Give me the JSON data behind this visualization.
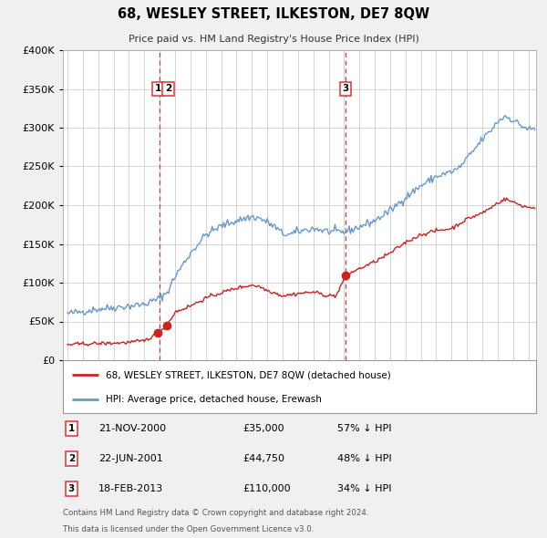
{
  "title": "68, WESLEY STREET, ILKESTON, DE7 8QW",
  "subtitle": "Price paid vs. HM Land Registry's House Price Index (HPI)",
  "legend_line1": "68, WESLEY STREET, ILKESTON, DE7 8QW (detached house)",
  "legend_line2": "HPI: Average price, detached house, Erewash",
  "footer1": "Contains HM Land Registry data © Crown copyright and database right 2024.",
  "footer2": "This data is licensed under the Open Government Licence v3.0.",
  "table": [
    {
      "num": 1,
      "date": "21-NOV-2000",
      "price": "£35,000",
      "hpi": "57% ↓ HPI"
    },
    {
      "num": 2,
      "date": "22-JUN-2001",
      "price": "£44,750",
      "hpi": "48% ↓ HPI"
    },
    {
      "num": 3,
      "date": "18-FEB-2013",
      "price": "£110,000",
      "hpi": "34% ↓ HPI"
    }
  ],
  "sale_dates": [
    2000.894,
    2001.474,
    2013.124
  ],
  "sale_prices": [
    35000,
    44750,
    110000
  ],
  "vline_dates": [
    2001.0,
    2013.124
  ],
  "hpi_color": "#6699cc",
  "price_color": "#cc2222",
  "vline_color": "#dd3333",
  "grid_color": "#cccccc",
  "background_color": "#f0f0f0",
  "plot_bg_color": "#ffffff",
  "legend_bg_color": "#ffffff",
  "ylim": [
    0,
    400000
  ],
  "yticks": [
    0,
    50000,
    100000,
    150000,
    200000,
    250000,
    300000,
    350000,
    400000
  ],
  "xmin": 1994.7,
  "xmax": 2025.5,
  "label_positions": [
    [
      2000.9,
      350000,
      "1"
    ],
    [
      2001.55,
      350000,
      "2"
    ],
    [
      2013.1,
      350000,
      "3"
    ]
  ]
}
